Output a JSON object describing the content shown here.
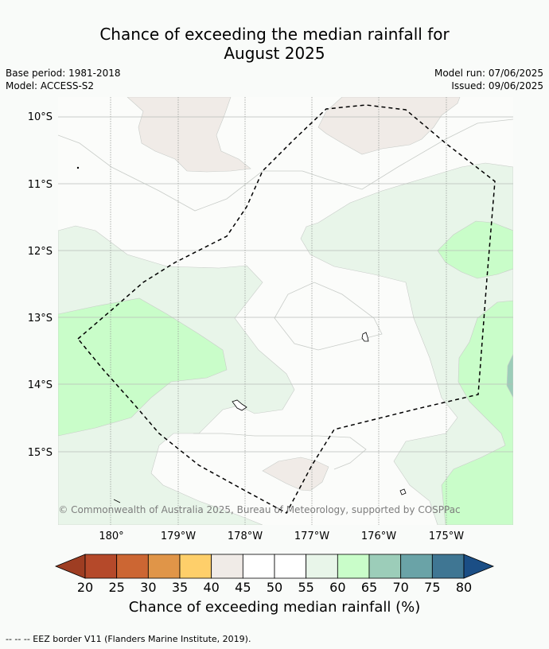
{
  "header": {
    "title_line1": "Chance of exceeding the median rainfall for",
    "title_line2": "August 2025",
    "base_period": "Base period: 1981-2018",
    "model": "Model: ACCESS-S2",
    "model_run": "Model run: 07/06/2025",
    "issued": "Issued: 09/06/2025"
  },
  "map": {
    "lat_labels": [
      "10°S",
      "11°S",
      "12°S",
      "13°S",
      "14°S",
      "15°S"
    ],
    "lon_labels": [
      "180°",
      "179°W",
      "178°W",
      "177°W",
      "176°W",
      "175°W"
    ],
    "copyright": "© Commonwealth of Australia 2025, Bureau of Meteorology, supported by COSPPac",
    "colors": {
      "c40_45": "#f0ebe7",
      "c55_60": "#e8f5e9",
      "c60_65": "#c9fdc9",
      "c65_70": "#9ccdb9",
      "eez_border": "#000000"
    }
  },
  "colorbar": {
    "ticks": [
      "20",
      "25",
      "30",
      "35",
      "40",
      "45",
      "50",
      "55",
      "60",
      "65",
      "70",
      "75",
      "80"
    ],
    "colors": [
      "#9e3d22",
      "#b5492a",
      "#cc6633",
      "#e09548",
      "#fecf6a",
      "#f0ebe7",
      "#ffffff",
      "#ffffff",
      "#e8f5e9",
      "#c9fdc9",
      "#9ccdb9",
      "#6aa3a7",
      "#3f7693",
      "#1b4e85"
    ],
    "label": "Chance of exceeding median rainfall (%)"
  },
  "footnote": "--  --  -- EEZ border V11 (Flanders Marine Institute, 2019)."
}
